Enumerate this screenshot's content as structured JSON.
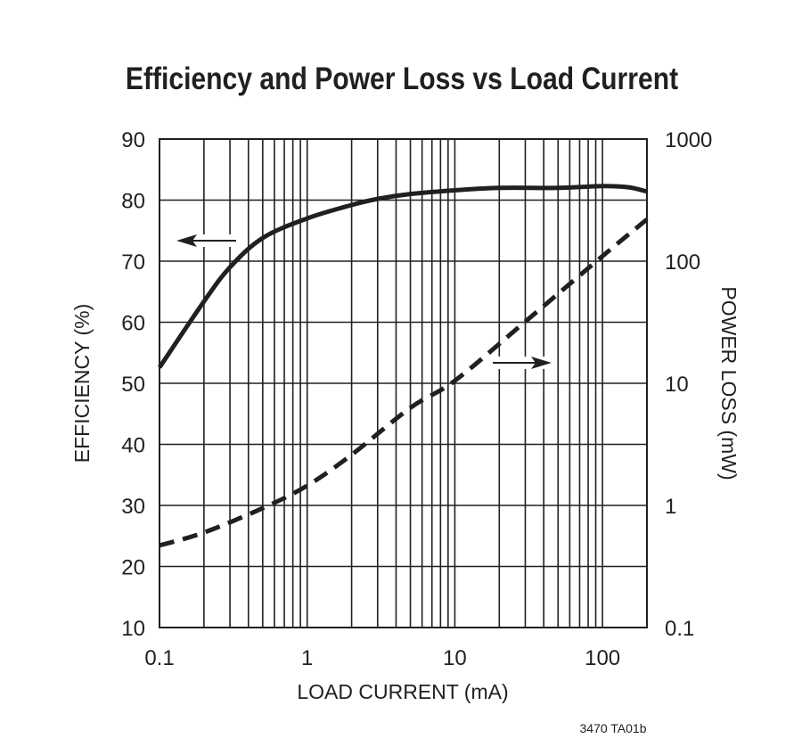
{
  "chart_data": {
    "type": "line",
    "title": "Efficiency and Power Loss vs Load Current",
    "xlabel": "LOAD CURRENT (mA)",
    "ylabel": "EFFICIENCY (%)",
    "y2label": "POWER LOSS (mW)",
    "xscale": "log",
    "xlim": [
      0.1,
      200
    ],
    "ylim": [
      10,
      90
    ],
    "y2scale": "log",
    "y2lim": [
      0.1,
      1000
    ],
    "grid": true,
    "x_ticks": [
      "0.1",
      "1",
      "10",
      "100"
    ],
    "y_ticks": [
      "10",
      "20",
      "30",
      "40",
      "50",
      "60",
      "70",
      "80",
      "90"
    ],
    "y2_ticks": [
      "0.1",
      "1",
      "10",
      "100",
      "1000"
    ],
    "series": [
      {
        "axis": "left",
        "style": "solid",
        "color": "#231f20",
        "x": [
          0.1,
          0.2,
          0.3,
          0.5,
          1,
          2,
          3,
          5,
          10,
          20,
          50,
          100,
          150,
          200
        ],
        "y": [
          52.6,
          63.4,
          69,
          73.8,
          77,
          79.2,
          80.2,
          81,
          81.6,
          82,
          82,
          82.3,
          82.1,
          81.4
        ]
      },
      {
        "axis": "right",
        "style": "dashed",
        "color": "#231f20",
        "x": [
          0.1,
          0.2,
          0.5,
          1,
          2,
          5,
          10,
          30,
          100,
          200
        ],
        "y": [
          0.47,
          0.6,
          0.95,
          1.45,
          2.6,
          6.3,
          10.5,
          32,
          110,
          220
        ]
      }
    ],
    "footnote": "3470 TA01b"
  }
}
